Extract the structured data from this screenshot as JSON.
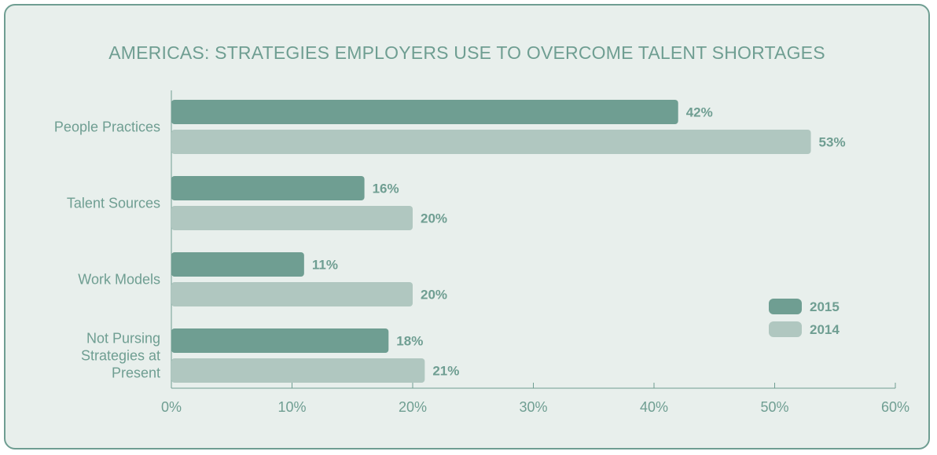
{
  "chart_data": {
    "type": "bar",
    "orientation": "horizontal",
    "title": "AMERICAS: STRATEGIES EMPLOYERS USE TO OVERCOME TALENT SHORTAGES",
    "categories": [
      [
        "People Practices"
      ],
      [
        "Talent Sources"
      ],
      [
        "Work Models"
      ],
      [
        "Not Pursing",
        "Strategies at",
        "Present"
      ]
    ],
    "series": [
      {
        "name": "2015",
        "color": "#6f9e92",
        "values": [
          42,
          16,
          11,
          18
        ]
      },
      {
        "name": "2014",
        "color": "#b0c7c0",
        "values": [
          53,
          20,
          20,
          21
        ]
      }
    ],
    "xlim": [
      0,
      60
    ],
    "xticks": [
      0,
      10,
      20,
      30,
      40,
      50,
      60
    ],
    "tick_suffix": "%",
    "value_suffix": "%",
    "legend_position": "bottom-right",
    "grid": false
  }
}
